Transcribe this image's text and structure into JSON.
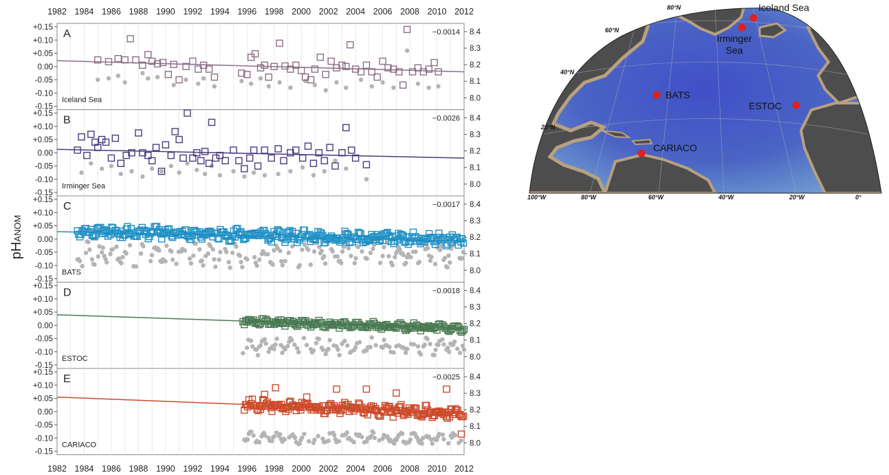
{
  "figure": {
    "y_axis_label": "pHANOM",
    "y_axis_label_base": "pH",
    "y_axis_label_sub": "ANOM",
    "x_ticks": [
      "1982",
      "1984",
      "1986",
      "1988",
      "1990",
      "1992",
      "1994",
      "1996",
      "1998",
      "2000",
      "2002",
      "2004",
      "2006",
      "2008",
      "2010",
      "2012"
    ],
    "left_ticks": [
      "+0.15",
      "+0.10",
      "+0.05",
      "0.00",
      "-0.05",
      "-0.10",
      "-0.15"
    ],
    "right_ticks": [
      "8.4",
      "8.3",
      "8.2",
      "8.1",
      "8.0"
    ]
  },
  "colors": {
    "iceland": "#8c6e86",
    "irminger": "#4a3a7e",
    "bats": "#1e8fc4",
    "estoc": "#4a7a52",
    "cariaco": "#cc4a2a",
    "insitu": "#b4b4b4"
  },
  "map": {
    "lat_labels": [
      "80°N",
      "60°N",
      "40°N",
      "20°N"
    ],
    "lon_labels": [
      "100°W",
      "80°W",
      "60°W",
      "40°W",
      "20°W",
      "0°"
    ],
    "sites": [
      {
        "name": "Iceland Sea"
      },
      {
        "name": "Irminger"
      },
      {
        "name": "Sea"
      },
      {
        "name": "BATS"
      },
      {
        "name": "ESTOC"
      },
      {
        "name": "CARIACO"
      }
    ]
  },
  "chart_data": [
    {
      "type": "scatter",
      "panel": "A",
      "station": "Iceland Sea",
      "trend_label": "−0.0014",
      "color_key": "iceland",
      "xlim": [
        1982,
        2012
      ],
      "ylim": [
        -0.15,
        0.15
      ],
      "y2lim": [
        8.0,
        8.4
      ],
      "grid": true,
      "trend_start": 0.022,
      "trend_end": -0.02,
      "pH_anom": [
        [
          1985,
          0.025
        ],
        [
          1985.8,
          0.018
        ],
        [
          1986.5,
          0.03
        ],
        [
          1987,
          0.025
        ],
        [
          1987.4,
          0.105
        ],
        [
          1987.8,
          0.025
        ],
        [
          1988.3,
          0.005
        ],
        [
          1988.7,
          0.045
        ],
        [
          1989,
          0.02
        ],
        [
          1989.4,
          0.01
        ],
        [
          1989.8,
          0.015
        ],
        [
          1990.2,
          -0.03
        ],
        [
          1990.6,
          0.008
        ],
        [
          1991,
          -0.05
        ],
        [
          1991.5,
          0.0
        ],
        [
          1992,
          0.02
        ],
        [
          1992.4,
          -0.01
        ],
        [
          1992.8,
          0.005
        ],
        [
          1993.2,
          -0.01
        ],
        [
          1993.6,
          -0.04
        ],
        [
          1995.6,
          -0.025
        ],
        [
          1996,
          -0.03
        ],
        [
          1996.3,
          0.035
        ],
        [
          1996.6,
          0.048
        ],
        [
          1997,
          -0.005
        ],
        [
          1997.3,
          0.005
        ],
        [
          1997.6,
          -0.04
        ],
        [
          1998,
          0.0
        ],
        [
          1998.4,
          0.088
        ],
        [
          1998.8,
          0.002
        ],
        [
          1999.2,
          -0.01
        ],
        [
          1999.6,
          0.005
        ],
        [
          2000,
          -0.015
        ],
        [
          2000.3,
          -0.04
        ],
        [
          2000.7,
          -0.05
        ],
        [
          2001,
          -0.01
        ],
        [
          2001.4,
          0.035
        ],
        [
          2001.8,
          -0.03
        ],
        [
          2002.2,
          0.02
        ],
        [
          2002.6,
          -0.005
        ],
        [
          2003,
          0.005
        ],
        [
          2003.3,
          0.0
        ],
        [
          2003.6,
          0.082
        ],
        [
          2004,
          -0.01
        ],
        [
          2004.4,
          -0.02
        ],
        [
          2004.8,
          0.005
        ],
        [
          2005.2,
          -0.02
        ],
        [
          2005.6,
          -0.04
        ],
        [
          2006,
          0.02
        ],
        [
          2006.4,
          -0.005
        ],
        [
          2006.8,
          -0.01
        ],
        [
          2007.2,
          -0.02
        ],
        [
          2007.5,
          -0.07
        ],
        [
          2007.8,
          0.14
        ],
        [
          2008.2,
          -0.02
        ],
        [
          2008.6,
          -0.005
        ],
        [
          2009,
          -0.02
        ],
        [
          2009.4,
          -0.01
        ],
        [
          2009.8,
          0.015
        ],
        [
          2010.1,
          -0.02
        ]
      ],
      "insitu_anom": [
        [
          1985,
          -0.05
        ],
        [
          1985.8,
          -0.045
        ],
        [
          1986.5,
          -0.035
        ],
        [
          1987,
          -0.06
        ],
        [
          1988.3,
          -0.025
        ],
        [
          1988.7,
          -0.045
        ],
        [
          1989.4,
          -0.04
        ],
        [
          1990.6,
          -0.07
        ],
        [
          1991.5,
          -0.05
        ],
        [
          1992.4,
          -0.065
        ],
        [
          1992.8,
          -0.045
        ],
        [
          1993.6,
          -0.075
        ],
        [
          1995.6,
          -0.055
        ],
        [
          1996.3,
          -0.065
        ],
        [
          1997,
          -0.045
        ],
        [
          1997.6,
          -0.075
        ],
        [
          1998.4,
          -0.06
        ],
        [
          1999.2,
          -0.08
        ],
        [
          2000.3,
          -0.055
        ],
        [
          2001,
          -0.07
        ],
        [
          2001.8,
          -0.09
        ],
        [
          2002.6,
          -0.06
        ],
        [
          2003.3,
          -0.08
        ],
        [
          2004.4,
          -0.05
        ],
        [
          2005.2,
          -0.075
        ],
        [
          2006,
          -0.06
        ],
        [
          2006.8,
          -0.08
        ],
        [
          2007.8,
          0.06
        ],
        [
          2008.6,
          -0.065
        ],
        [
          2009.4,
          -0.08
        ],
        [
          2010.1,
          -0.075
        ]
      ]
    },
    {
      "type": "scatter",
      "panel": "B",
      "station": "Irminger Sea",
      "trend_label": "−0.0026",
      "color_key": "irminger",
      "xlim": [
        1982,
        2012
      ],
      "ylim": [
        -0.15,
        0.15
      ],
      "y2lim": [
        8.0,
        8.4
      ],
      "grid": true,
      "trend_start": 0.013,
      "trend_end": -0.02,
      "pH_anom": [
        [
          1983.5,
          0.01
        ],
        [
          1983.8,
          0.06
        ],
        [
          1984.2,
          -0.01
        ],
        [
          1984.5,
          0.07
        ],
        [
          1984.8,
          0.04
        ],
        [
          1985,
          0.02
        ],
        [
          1985.3,
          0.05
        ],
        [
          1985.6,
          0.04
        ],
        [
          1986,
          -0.02
        ],
        [
          1986.3,
          0.055
        ],
        [
          1986.7,
          -0.04
        ],
        [
          1987.1,
          -0.01
        ],
        [
          1987.5,
          0.0
        ],
        [
          1988,
          0.075
        ],
        [
          1988.3,
          0.0
        ],
        [
          1988.7,
          -0.01
        ],
        [
          1989,
          -0.03
        ],
        [
          1989.3,
          0.02
        ],
        [
          1989.7,
          -0.07
        ],
        [
          1990,
          0.03
        ],
        [
          1990.4,
          -0.01
        ],
        [
          1990.7,
          0.08
        ],
        [
          1991,
          0.05
        ],
        [
          1991.3,
          -0.02
        ],
        [
          1991.6,
          0.15
        ],
        [
          1992,
          -0.02
        ],
        [
          1992.3,
          0.0
        ],
        [
          1992.6,
          -0.03
        ],
        [
          1992.9,
          0.005
        ],
        [
          1993.2,
          -0.04
        ],
        [
          1993.4,
          0.115
        ],
        [
          1993.7,
          -0.02
        ],
        [
          1994,
          -0.01
        ],
        [
          1994.4,
          -0.03
        ],
        [
          1995,
          0.01
        ],
        [
          1995.4,
          -0.03
        ],
        [
          1995.8,
          -0.06
        ],
        [
          1996.2,
          -0.02
        ],
        [
          1996.5,
          0.01
        ],
        [
          1996.8,
          -0.05
        ],
        [
          1997.3,
          0.01
        ],
        [
          1997.8,
          -0.02
        ],
        [
          1998.3,
          0.015
        ],
        [
          1998.7,
          -0.03
        ],
        [
          1999.2,
          0.0
        ],
        [
          1999.6,
          0.01
        ],
        [
          2000.1,
          -0.02
        ],
        [
          2000.5,
          0.025
        ],
        [
          2000.9,
          -0.04
        ],
        [
          2001.3,
          0.0
        ],
        [
          2001.7,
          -0.03
        ],
        [
          2002.1,
          0.02
        ],
        [
          2002.5,
          -0.05
        ],
        [
          2003,
          0.0
        ],
        [
          2003.3,
          0.095
        ],
        [
          2003.7,
          0.01
        ],
        [
          2004,
          -0.02
        ],
        [
          2004.8,
          -0.045
        ]
      ],
      "insitu_anom": [
        [
          1983.8,
          -0.075
        ],
        [
          1984.5,
          -0.04
        ],
        [
          1985.3,
          -0.06
        ],
        [
          1986,
          -0.05
        ],
        [
          1986.7,
          -0.08
        ],
        [
          1987.5,
          -0.07
        ],
        [
          1988.3,
          -0.09
        ],
        [
          1989,
          -0.06
        ],
        [
          1989.7,
          -0.07
        ],
        [
          1990.4,
          -0.05
        ],
        [
          1991,
          -0.075
        ],
        [
          1991.6,
          -0.04
        ],
        [
          1992.3,
          -0.065
        ],
        [
          1992.9,
          -0.08
        ],
        [
          1993.4,
          -0.05
        ],
        [
          1994,
          -0.085
        ],
        [
          1995,
          -0.07
        ],
        [
          1995.8,
          -0.09
        ],
        [
          1996.5,
          -0.075
        ],
        [
          1997.3,
          -0.085
        ],
        [
          1998.3,
          -0.08
        ],
        [
          1999.2,
          -0.07
        ],
        [
          2000.1,
          -0.055
        ],
        [
          2000.9,
          -0.085
        ],
        [
          2001.7,
          -0.07
        ],
        [
          2002.5,
          -0.03
        ],
        [
          2003.3,
          -0.06
        ],
        [
          2004.8,
          -0.1
        ]
      ]
    },
    {
      "type": "scatter",
      "panel": "C",
      "station": "BATS",
      "trend_label": "−0.0017",
      "color_key": "bats",
      "xlim": [
        1982,
        2012
      ],
      "ylim": [
        -0.15,
        0.15
      ],
      "y2lim": [
        8.0,
        8.4
      ],
      "grid": true,
      "trend_start": 0.028,
      "trend_end": -0.008,
      "seasonal": {
        "x_start": 1983.5,
        "x_end": 2012,
        "step": 0.09,
        "amp": 0.02,
        "offset": 0.02,
        "insitu_offset": -0.06,
        "insitu_amp": 0.03,
        "seed": 7
      }
    },
    {
      "type": "scatter",
      "panel": "D",
      "station": "ESTOC",
      "trend_label": "−0.0018",
      "color_key": "estoc",
      "xlim": [
        1982,
        2012
      ],
      "ylim": [
        -0.15,
        0.15
      ],
      "y2lim": [
        8.0,
        8.4
      ],
      "grid": true,
      "trend_start": 0.04,
      "trend_end": -0.012,
      "seasonal": {
        "x_start": 1995.7,
        "x_end": 2012,
        "step": 0.1,
        "amp": 0.012,
        "offset": 0.015,
        "insitu_offset": -0.08,
        "insitu_amp": 0.02,
        "seed": 11
      }
    },
    {
      "type": "scatter",
      "panel": "E",
      "station": "CARIACO",
      "trend_label": "−0.0025",
      "color_key": "cariaco",
      "xlim": [
        1982,
        2012
      ],
      "ylim": [
        -0.15,
        0.15
      ],
      "y2lim": [
        8.0,
        8.4
      ],
      "grid": true,
      "trend_start": 0.055,
      "trend_end": -0.006,
      "seasonal": {
        "x_start": 1995.8,
        "x_end": 2012,
        "step": 0.085,
        "amp": 0.02,
        "offset": 0.015,
        "insitu_offset": -0.1,
        "insitu_amp": 0.015,
        "seed": 23
      },
      "extra_pH_anom": [
        [
          1997.3,
          0.065
        ],
        [
          1998.1,
          0.09
        ],
        [
          2000.4,
          0.055
        ],
        [
          2002.6,
          0.085
        ],
        [
          2004.8,
          0.085
        ],
        [
          2007.0,
          0.07
        ],
        [
          2010.7,
          0.085
        ],
        [
          2011.8,
          -0.085
        ]
      ]
    }
  ]
}
